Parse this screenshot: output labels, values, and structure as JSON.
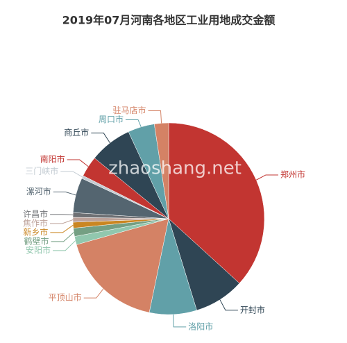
{
  "chart_data": {
    "type": "pie",
    "title": "2019年07月河南各地区工业用地成交金额",
    "categories": [
      "郑州市",
      "开封市",
      "洛阳市",
      "平顶山市",
      "安阳市",
      "鹤壁市",
      "新乡市",
      "焦作市",
      "许昌市",
      "漯河市",
      "三门峡市",
      "南阳市",
      "商丘市",
      "周口市",
      "驻马店市"
    ],
    "values": [
      36.8,
      8.5,
      8,
      17.4,
      1.4,
      1.4,
      1,
      0.8,
      0.8,
      5.9,
      0.5,
      3.5,
      7.2,
      4.5,
      2.4
    ],
    "colors": [
      "#c23531",
      "#2f4554",
      "#61a0a8",
      "#d48265",
      "#91c7ae",
      "#749f83",
      "#ca8622",
      "#bda29a",
      "#6e7074",
      "#546570",
      "#c4ccd3",
      "#c23531",
      "#2f4554",
      "#61a0a8",
      "#d48265"
    ]
  },
  "watermark": "zhaoshang.net"
}
